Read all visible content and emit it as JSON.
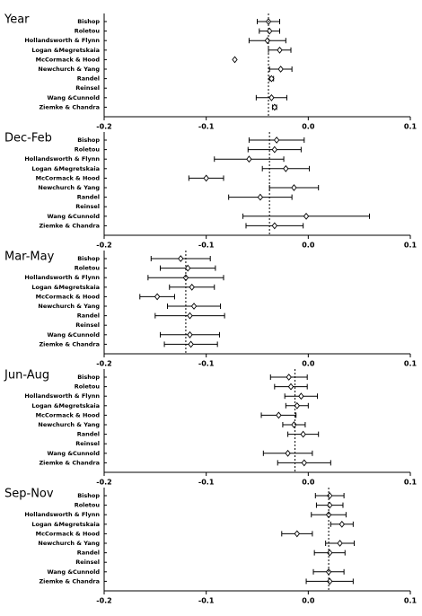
{
  "chart_data": [
    {
      "type": "dot",
      "title": "Year",
      "categories": [
        "Bishop",
        "Roletou",
        "Hollandsworth & Flynn",
        "Logan &Megretskaia",
        "McCormack & Hood",
        "Newchurch & Yang",
        "Randel",
        "Reinsel",
        "Wang &Cunnold",
        "Ziemke & Chandra"
      ],
      "values": [
        -0.039,
        -0.038,
        -0.04,
        -0.028,
        -0.072,
        -0.027,
        -0.036,
        null,
        -0.036,
        -0.033
      ],
      "errors": [
        0.011,
        0.01,
        0.018,
        0.011,
        0,
        0.011,
        0.002,
        null,
        0.015,
        0.002
      ],
      "reference": -0.039,
      "xlim": [
        -0.2,
        0.1
      ],
      "xticks": [
        -0.2,
        -0.1,
        {
          "value": 0,
          "label": "0.0"
        },
        0.1
      ]
    },
    {
      "type": "dot",
      "title": "Dec-Feb",
      "categories": [
        "Bishop",
        "Roletou",
        "Hollandsworth & Flynn",
        "Logan &Megretskaia",
        "McCormack & Hood",
        "Newchurch & Yang",
        "Randel",
        "Reinsel",
        "Wang &Cunnold",
        "Ziemke & Chandra"
      ],
      "values": [
        -0.031,
        -0.033,
        -0.058,
        -0.022,
        -0.1,
        -0.014,
        -0.047,
        null,
        -0.002,
        -0.033
      ],
      "errors": [
        0.027,
        0.026,
        0.034,
        0.023,
        0.017,
        0.024,
        0.031,
        null,
        0.062,
        0.028
      ],
      "reference": -0.038,
      "xlim": [
        -0.2,
        0.1
      ],
      "xticks": [
        -0.2,
        -0.1,
        {
          "value": 0,
          "label": "0.0"
        },
        0.1
      ]
    },
    {
      "type": "dot",
      "title": "Mar-May",
      "categories": [
        "Bishop",
        "Roletou",
        "Hollandsworth & Flynn",
        "Logan &Megretskaia",
        "McCormack & Hood",
        "Newchurch & Yang",
        "Randel",
        "Reinsel",
        "Wang &Cunnold",
        "Ziemke & Chandra"
      ],
      "values": [
        -0.125,
        -0.118,
        -0.12,
        -0.114,
        -0.148,
        -0.112,
        -0.116,
        null,
        -0.116,
        -0.115
      ],
      "errors": [
        0.029,
        0.027,
        0.037,
        0.022,
        0.017,
        0.026,
        0.034,
        null,
        0.029,
        0.026
      ],
      "reference": -0.12,
      "xlim": [
        -0.2,
        0.1
      ],
      "xticks": [
        -0.2,
        -0.1,
        {
          "value": 0,
          "label": "0.0"
        },
        0.1
      ]
    },
    {
      "type": "dot",
      "title": "Jun-Aug",
      "categories": [
        "Bishop",
        "Roletou",
        "Hollandsworth & Flynn",
        "Logan &Megretskaia",
        "McCormack & Hood",
        "Newchurch & Yang",
        "Randel",
        "Reinsel",
        "Wang &Cunnold",
        "Ziemke & Chandra"
      ],
      "values": [
        -0.019,
        -0.017,
        -0.007,
        -0.011,
        -0.029,
        -0.014,
        -0.005,
        null,
        -0.02,
        -0.004
      ],
      "errors": [
        0.018,
        0.016,
        0.016,
        0.011,
        0.017,
        0.011,
        0.015,
        null,
        0.024,
        0.026
      ],
      "reference": -0.013,
      "xlim": [
        -0.2,
        0.1
      ],
      "xticks": [
        -0.2,
        -0.1,
        {
          "value": 0,
          "label": "0.0"
        },
        0.1
      ]
    },
    {
      "type": "dot",
      "title": "Sep-Nov",
      "categories": [
        "Bishop",
        "Roletou",
        "Hollandsworth & Flynn",
        "Logan &Megretskaia",
        "McCormack & Hood",
        "Newchurch & Yang",
        "Randel",
        "Reinsel",
        "Wang &Cunnold",
        "Ziemke & Chandra"
      ],
      "values": [
        0.021,
        0.021,
        0.02,
        0.033,
        -0.011,
        0.031,
        0.021,
        null,
        0.02,
        0.021
      ],
      "errors": [
        0.014,
        0.013,
        0.017,
        0.011,
        0.015,
        0.014,
        0.015,
        null,
        0.015,
        0.023
      ],
      "reference": 0.02,
      "xlim": [
        -0.2,
        0.1
      ],
      "xticks": [
        -0.2,
        -0.1,
        {
          "value": 0,
          "label": "0.0"
        },
        0.1
      ]
    }
  ]
}
